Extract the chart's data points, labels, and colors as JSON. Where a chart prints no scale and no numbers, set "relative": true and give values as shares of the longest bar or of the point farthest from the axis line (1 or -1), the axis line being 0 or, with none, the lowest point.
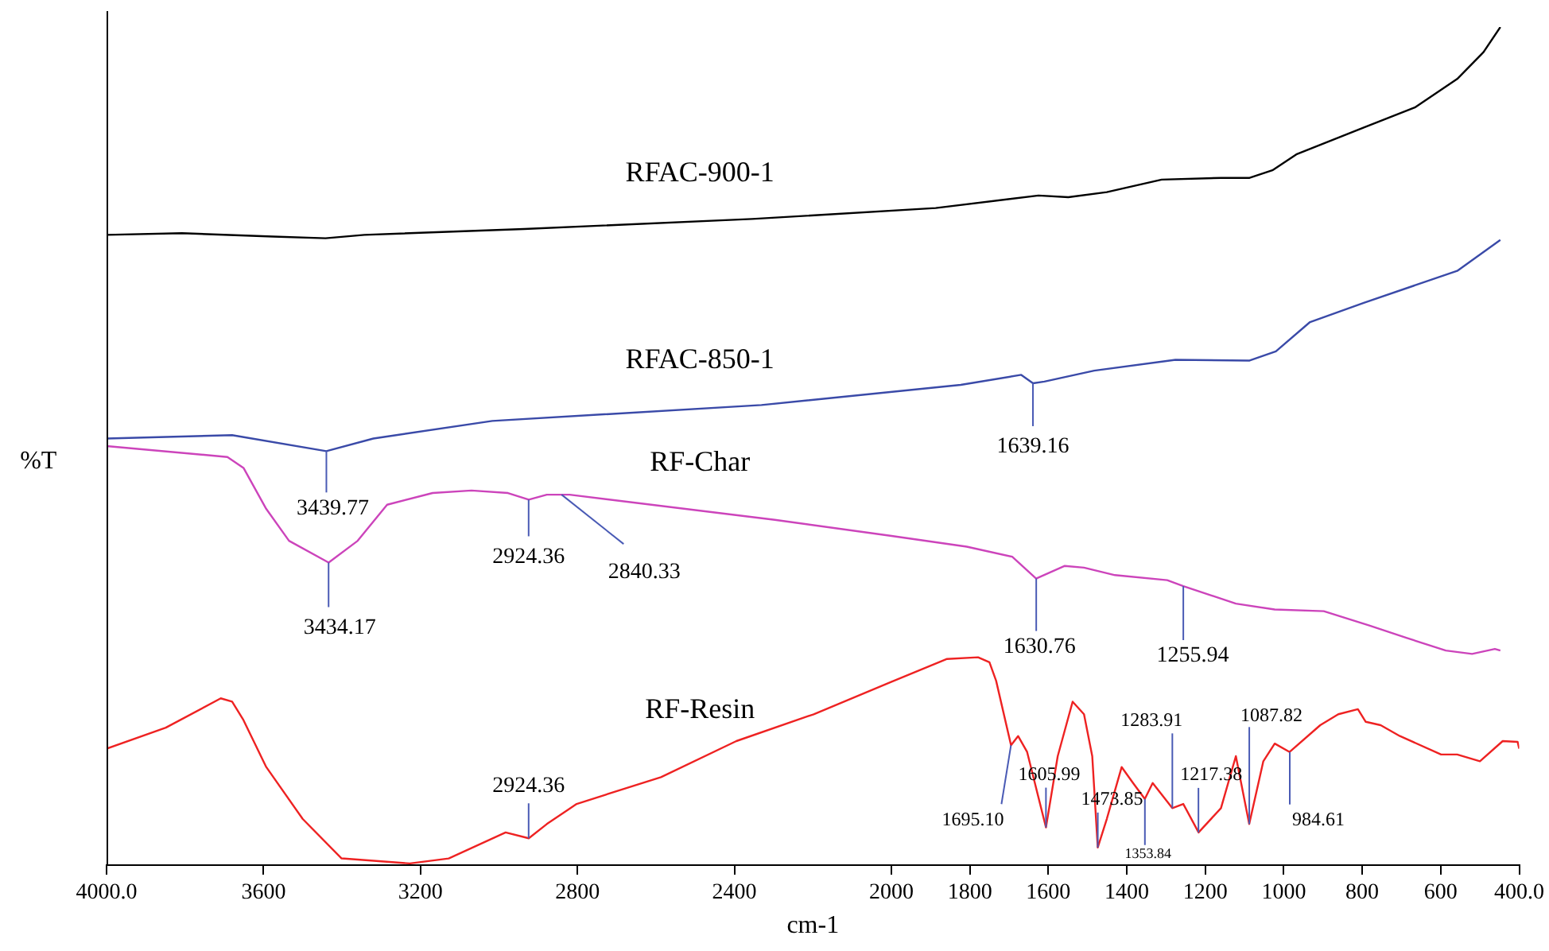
{
  "chart_data": {
    "type": "line",
    "xlabel": "cm-1",
    "ylabel": "%T",
    "relative": true,
    "xlim": [
      4000,
      400
    ],
    "xticks": [
      {
        "value": 4000,
        "label": "4000.0"
      },
      3600,
      3200,
      2800,
      2400,
      2000,
      1800,
      1600,
      1400,
      1200,
      1000,
      800,
      600,
      {
        "value": 400,
        "label": "400.0"
      }
    ],
    "marker": "none",
    "line_style": "solid",
    "grid": false,
    "legend": false,
    "series": [
      {
        "name": "RFAC-900-1",
        "color": "#000000",
        "x": [
          4000,
          3808,
          3576,
          3442,
          3343,
          2936,
          2355,
          1887,
          1625,
          1549,
          1451,
          1311,
          1160,
          1087,
          1029,
          968,
          796,
          666,
          558,
          491,
          448
        ],
        "values": [
          0.752,
          0.754,
          0.75,
          0.748,
          0.752,
          0.759,
          0.771,
          0.784,
          0.799,
          0.797,
          0.803,
          0.818,
          0.82,
          0.82,
          0.829,
          0.848,
          0.88,
          0.904,
          0.938,
          0.97,
          1
        ]
      },
      {
        "name": "RFAC-850-1",
        "color": "#3a4aa8",
        "x": [
          4000,
          3680,
          3440,
          3320,
          3017,
          2331,
          1823,
          1669,
          1639,
          1610,
          1483,
          1276,
          1087,
          1020,
          933,
          796,
          558,
          448
        ],
        "values": [
          0.509,
          0.513,
          0.494,
          0.509,
          0.53,
          0.549,
          0.573,
          0.585,
          0.575,
          0.577,
          0.59,
          0.603,
          0.602,
          0.613,
          0.648,
          0.671,
          0.709,
          0.746
        ]
      },
      {
        "name": "RF-Char",
        "color": "#cc44bb",
        "x": [
          4000,
          3692,
          3651,
          3593,
          3535,
          3434,
          3360,
          3285,
          3169,
          3070,
          2977,
          2924,
          2878,
          2820,
          2297,
          2003,
          1808,
          1692,
          1631,
          1558,
          1509,
          1430,
          1297,
          1256,
          1122,
          1023,
          898,
          782,
          686,
          587,
          520,
          462,
          448
        ],
        "values": [
          0.5,
          0.487,
          0.474,
          0.425,
          0.387,
          0.361,
          0.387,
          0.43,
          0.444,
          0.447,
          0.444,
          0.436,
          0.442,
          0.442,
          0.412,
          0.393,
          0.38,
          0.368,
          0.342,
          0.357,
          0.355,
          0.346,
          0.34,
          0.333,
          0.312,
          0.305,
          0.303,
          0.286,
          0.271,
          0.256,
          0.252,
          0.258,
          0.256
        ]
      },
      {
        "name": "RF-Resin",
        "color": "#ee2222",
        "x": [
          4000,
          3849,
          3709,
          3680,
          3651,
          3593,
          3500,
          3401,
          3227,
          3128,
          2983,
          2924,
          2878,
          2802,
          2587,
          2395,
          2198,
          2003,
          1858,
          1779,
          1750,
          1733,
          1695,
          1677,
          1654,
          1606,
          1576,
          1538,
          1509,
          1488,
          1474,
          1451,
          1413,
          1384,
          1354,
          1334,
          1284,
          1256,
          1217,
          1160,
          1122,
          1088,
          1052,
          1023,
          985,
          907,
          861,
          811,
          791,
          753,
          704,
          599,
          558,
          500,
          442,
          404,
          400
        ],
        "values": [
          0.139,
          0.164,
          0.199,
          0.195,
          0.173,
          0.117,
          0.055,
          0.008,
          0.002,
          0.008,
          0.039,
          0.032,
          0.049,
          0.073,
          0.105,
          0.148,
          0.18,
          0.218,
          0.246,
          0.248,
          0.242,
          0.22,
          0.143,
          0.154,
          0.135,
          0.045,
          0.13,
          0.195,
          0.18,
          0.13,
          0.021,
          0.055,
          0.117,
          0.098,
          0.079,
          0.098,
          0.068,
          0.073,
          0.039,
          0.068,
          0.13,
          0.049,
          0.124,
          0.145,
          0.135,
          0.167,
          0.18,
          0.186,
          0.171,
          0.167,
          0.154,
          0.132,
          0.132,
          0.124,
          0.148,
          0.147,
          0.139
        ]
      }
    ],
    "annotations": [
      {
        "text": "1639.16",
        "x": 1639.16,
        "y": 0.575
      },
      {
        "text": "3439.77",
        "x": 3439.77,
        "y": 0.494
      },
      {
        "text": "3434.17",
        "x": 3434.17,
        "y": 0.361
      },
      {
        "text": "2924.36",
        "x": 2924.36,
        "y": 0.436
      },
      {
        "text": "2840.33",
        "x": 2840.33,
        "y": 0.442
      },
      {
        "text": "1630.76",
        "x": 1630.76,
        "y": 0.342
      },
      {
        "text": "1255.94",
        "x": 1255.94,
        "y": 0.333
      },
      {
        "text": "2924.36",
        "x": 2924.36,
        "y": 0.032
      },
      {
        "text": "1695.10",
        "x": 1695.1,
        "y": 0.143
      },
      {
        "text": "1605.99",
        "x": 1605.99,
        "y": 0.045
      },
      {
        "text": "1473.85",
        "x": 1473.85,
        "y": 0.021
      },
      {
        "text": "1353.84",
        "x": 1353.84,
        "y": 0.079
      },
      {
        "text": "1283.91",
        "x": 1283.91,
        "y": 0.068
      },
      {
        "text": "1217.38",
        "x": 1217.38,
        "y": 0.039
      },
      {
        "text": "1087.82",
        "x": 1087.82,
        "y": 0.049
      },
      {
        "text": "984.61",
        "x": 984.61,
        "y": 0.135
      }
    ]
  }
}
